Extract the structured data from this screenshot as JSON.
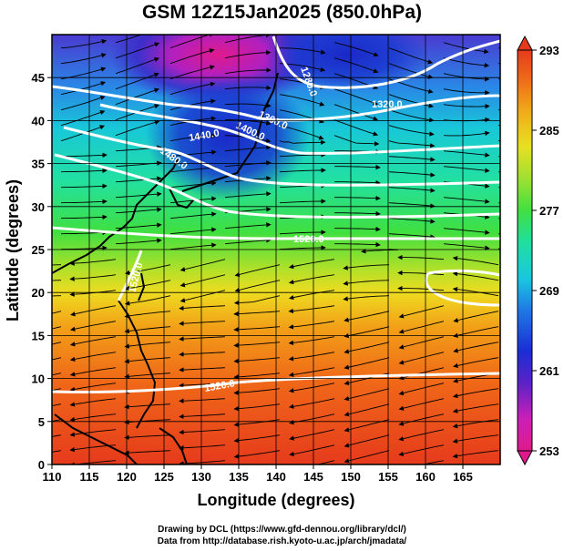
{
  "title": "GSM 12Z15Jan2025 (850.0hPa)",
  "x_axis": {
    "label": "Longitude (degrees)",
    "range": [
      110,
      170
    ],
    "ticks": [
      110,
      115,
      120,
      125,
      130,
      135,
      140,
      145,
      150,
      155,
      160,
      165
    ]
  },
  "y_axis": {
    "label": "Latitude  (degrees)",
    "range": [
      0,
      50
    ],
    "ticks": [
      0,
      5,
      10,
      15,
      20,
      25,
      30,
      35,
      40,
      45
    ]
  },
  "colorbar": {
    "min": 253,
    "max": 293,
    "tick_labels": [
      "293",
      "285",
      "277",
      "269",
      "261",
      "253"
    ],
    "tick_values": [
      293,
      285,
      277,
      269,
      261,
      253
    ],
    "colors": [
      "#e01a8c",
      "#cc1fb8",
      "#5a22c8",
      "#1a2ed6",
      "#1f78e6",
      "#18c8e0",
      "#1ee0a0",
      "#40e040",
      "#a0e030",
      "#e8e020",
      "#f0b018",
      "#f07018",
      "#e63a1c"
    ]
  },
  "contours": [
    {
      "label": "1280.0"
    },
    {
      "label": "1320.0"
    },
    {
      "label": "1360.0"
    },
    {
      "label": "1400.0"
    },
    {
      "label": "1440.0"
    },
    {
      "label": "1480.0"
    },
    {
      "label": "1520.0"
    },
    {
      "label": "1520.0"
    },
    {
      "label": "1520.0"
    }
  ],
  "credits": {
    "line1": "Drawing by DCL (https://www.gfd-dennou.org/library/dcl/)",
    "line2": "Data from http://database.rish.kyoto-u.ac.jp/arch/jmadata/"
  }
}
